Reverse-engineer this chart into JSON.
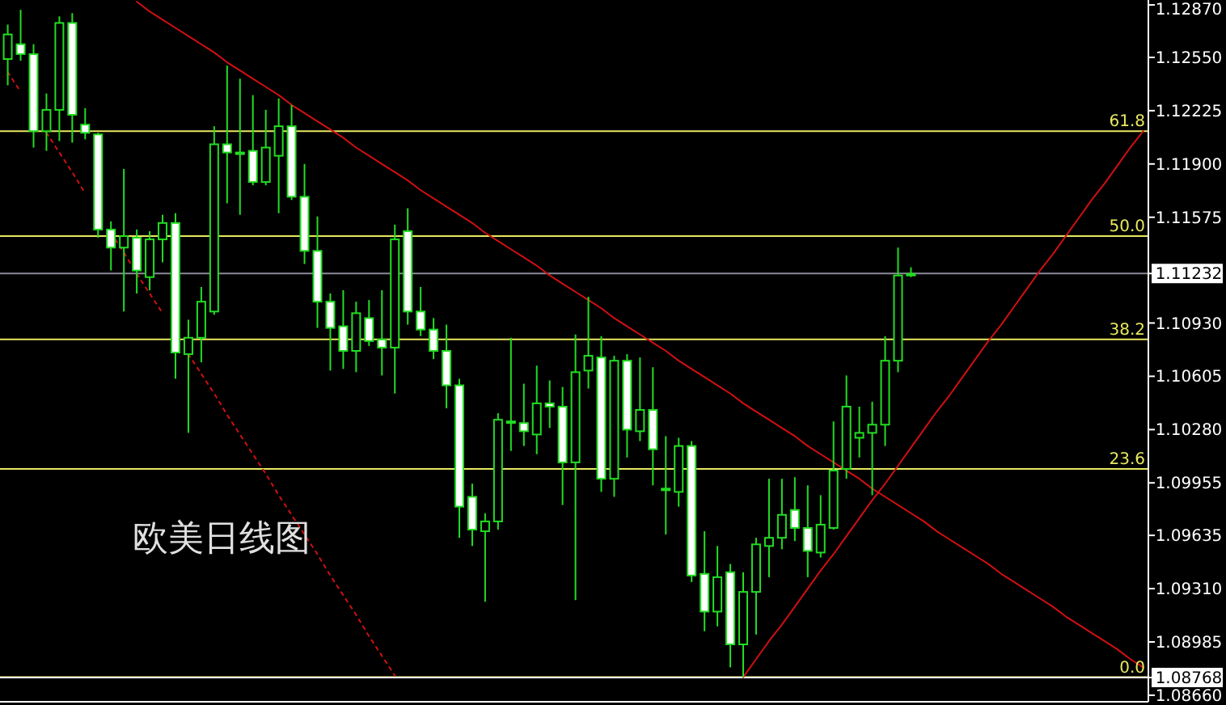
{
  "chart_data": {
    "type": "candlestick",
    "categories": [
      null,
      null,
      null,
      null,
      null,
      null,
      null,
      null,
      null,
      null,
      null,
      null,
      null,
      null,
      null,
      null,
      null,
      null,
      null,
      null,
      null,
      null,
      null,
      null,
      null,
      null,
      null,
      null,
      null,
      null,
      null,
      null,
      null,
      null,
      null,
      null,
      null,
      null,
      null,
      null,
      null,
      null,
      null,
      null,
      null,
      null,
      null,
      null,
      null,
      null,
      null,
      null,
      null,
      null,
      null,
      null,
      null,
      null,
      null,
      null,
      null,
      null,
      null,
      null,
      null,
      null,
      null,
      null,
      null,
      null,
      null,
      null,
      null,
      null,
      null,
      null,
      null,
      null,
      null,
      null,
      null,
      null,
      null,
      null,
      null,
      null,
      null,
      null,
      null
    ],
    "color": "#22dd22",
    "ohlc": [
      [
        1.1254,
        1.1275,
        1.1238,
        1.1269
      ],
      [
        1.1263,
        1.1284,
        1.1253,
        1.1257
      ],
      [
        1.1257,
        1.1263,
        1.12,
        1.121
      ],
      [
        1.121,
        1.1233,
        1.1198,
        1.1223
      ],
      [
        1.1223,
        1.128,
        1.1204,
        1.1276
      ],
      [
        1.1276,
        1.1282,
        1.1203,
        1.122
      ],
      [
        1.1214,
        1.1224,
        1.1205,
        1.1209
      ],
      [
        1.1208,
        1.1209,
        1.1145,
        1.115
      ],
      [
        1.115,
        1.1155,
        1.1125,
        1.1139
      ],
      [
        1.1139,
        1.1187,
        1.11,
        1.1146
      ],
      [
        1.1145,
        1.115,
        1.1111,
        1.1125
      ],
      [
        1.1121,
        1.1149,
        1.1113,
        1.1144
      ],
      [
        1.1144,
        1.1159,
        1.113,
        1.1154
      ],
      [
        1.1154,
        1.116,
        1.1059,
        1.1075
      ],
      [
        1.1074,
        1.1095,
        1.1026,
        1.1084
      ],
      [
        1.1084,
        1.1115,
        1.1069,
        1.1106
      ],
      [
        1.11,
        1.1213,
        1.1098,
        1.1202
      ],
      [
        1.1202,
        1.125,
        1.1166,
        1.1197
      ],
      [
        1.1197,
        1.1242,
        1.1159,
        1.1197
      ],
      [
        1.1198,
        1.1232,
        1.1177,
        1.1179
      ],
      [
        1.1179,
        1.1223,
        1.1177,
        1.12
      ],
      [
        1.1195,
        1.123,
        1.116,
        1.1213
      ],
      [
        1.1213,
        1.1226,
        1.1168,
        1.117
      ],
      [
        1.117,
        1.119,
        1.1129,
        1.1137
      ],
      [
        1.1137,
        1.1158,
        1.109,
        1.1106
      ],
      [
        1.1106,
        1.1111,
        1.1064,
        1.109
      ],
      [
        1.1091,
        1.1113,
        1.1065,
        1.1076
      ],
      [
        1.1076,
        1.1106,
        1.1063,
        1.1099
      ],
      [
        1.1096,
        1.1107,
        1.1079,
        1.1082
      ],
      [
        1.1083,
        1.1113,
        1.1061,
        1.1078
      ],
      [
        1.1078,
        1.1153,
        1.105,
        1.1144
      ],
      [
        1.1149,
        1.1163,
        1.1092,
        1.11
      ],
      [
        1.11,
        1.1115,
        1.1085,
        1.1089
      ],
      [
        1.1089,
        1.1096,
        1.1071,
        1.1076
      ],
      [
        1.1076,
        1.1092,
        1.1041,
        1.1055
      ],
      [
        1.1055,
        1.1059,
        1.0962,
        1.0981
      ],
      [
        1.0987,
        1.0995,
        1.0957,
        1.0967
      ],
      [
        1.0966,
        1.0977,
        1.0923,
        1.0972
      ],
      [
        1.0972,
        1.1038,
        1.0967,
        1.1034
      ],
      [
        1.1033,
        1.1084,
        1.1015,
        1.1033
      ],
      [
        1.1032,
        1.1056,
        1.1018,
        1.1027
      ],
      [
        1.1025,
        1.1067,
        1.1013,
        1.1044
      ],
      [
        1.1044,
        1.1058,
        1.1029,
        1.1042
      ],
      [
        1.1042,
        1.1054,
        1.0982,
        1.1008
      ],
      [
        1.1008,
        1.1086,
        1.0924,
        1.1063
      ],
      [
        1.1064,
        1.1109,
        1.1053,
        1.1073
      ],
      [
        1.1072,
        1.1085,
        1.099,
        1.0998
      ],
      [
        1.0998,
        1.1073,
        1.0987,
        1.107
      ],
      [
        1.107,
        1.1074,
        1.1011,
        1.1028
      ],
      [
        1.1027,
        1.1072,
        1.1021,
        1.104
      ],
      [
        1.104,
        1.1066,
        1.0994,
        1.1016
      ],
      [
        1.0992,
        1.1024,
        1.0964,
        1.0992
      ],
      [
        1.099,
        1.1023,
        1.0981,
        1.1018
      ],
      [
        1.1018,
        1.1021,
        1.0935,
        1.0939
      ],
      [
        1.094,
        1.0966,
        1.0905,
        1.0917
      ],
      [
        1.0917,
        1.0957,
        1.0908,
        1.0938
      ],
      [
        1.0941,
        1.0946,
        1.0883,
        1.0897
      ],
      [
        1.0897,
        1.0941,
        1.0877,
        1.0929
      ],
      [
        1.0929,
        1.0962,
        1.0903,
        1.0958
      ],
      [
        1.0957,
        1.0998,
        1.0938,
        1.0962
      ],
      [
        1.0962,
        1.0998,
        1.0955,
        1.0976
      ],
      [
        1.0979,
        1.0999,
        1.096,
        1.0968
      ],
      [
        1.0968,
        1.0994,
        1.0938,
        1.0954
      ],
      [
        1.0953,
        1.0988,
        1.095,
        1.097
      ],
      [
        1.0968,
        1.1033,
        1.0967,
        1.1003
      ],
      [
        1.1004,
        1.1061,
        1.0998,
        1.1042
      ],
      [
        1.1023,
        1.1042,
        1.1011,
        1.1026
      ],
      [
        1.1026,
        1.1045,
        1.0988,
        1.1031
      ],
      [
        1.1031,
        1.1085,
        1.1018,
        1.107
      ],
      [
        1.107,
        1.1139,
        1.1063,
        1.1122
      ],
      [
        1.1122,
        1.1127,
        1.1121,
        1.1123
      ],
      null,
      null,
      null,
      null,
      null,
      null,
      null,
      null,
      null,
      null,
      null,
      null,
      null,
      null,
      null,
      null,
      null,
      null
    ],
    "series": [
      {
        "type": "line",
        "color": "#d01010",
        "line_style": "solid",
        "values": [
          null,
          null,
          null,
          null,
          null,
          null,
          null,
          null,
          null,
          null,
          1.1289,
          1.1283,
          1.1278,
          1.1273,
          1.1268,
          1.1263,
          1.1258,
          1.1252,
          1.1247,
          1.1242,
          1.1237,
          1.1232,
          1.1226,
          1.1221,
          1.1216,
          1.1211,
          1.1206,
          1.12,
          1.1195,
          1.119,
          1.1185,
          1.118,
          1.1174,
          1.1169,
          1.1164,
          1.1159,
          1.1154,
          1.1148,
          1.1143,
          1.1138,
          1.1133,
          1.1128,
          1.1122,
          1.1117,
          1.1112,
          1.1107,
          1.1102,
          1.1096,
          1.1091,
          1.1086,
          1.1081,
          1.1076,
          1.107,
          1.1065,
          1.106,
          1.1055,
          1.105,
          1.1044,
          1.1039,
          1.1034,
          1.1029,
          1.1024,
          1.1018,
          1.1013,
          1.1008,
          1.1003,
          1.0998,
          1.0992,
          1.0987,
          1.0982,
          1.0977,
          1.0972,
          1.0966,
          1.0961,
          1.0956,
          1.0951,
          1.0946,
          1.094,
          1.0935,
          1.093,
          1.0925,
          1.092,
          1.0914,
          1.0909,
          1.0904,
          1.0899,
          1.0894,
          1.0888,
          1.0883
        ]
      },
      {
        "type": "line",
        "color": "#d01010",
        "line_style": "solid",
        "values": [
          null,
          null,
          null,
          null,
          null,
          null,
          null,
          null,
          null,
          null,
          null,
          null,
          null,
          null,
          null,
          null,
          null,
          null,
          null,
          null,
          null,
          null,
          null,
          null,
          null,
          null,
          null,
          null,
          null,
          null,
          null,
          null,
          null,
          null,
          null,
          null,
          null,
          null,
          null,
          null,
          null,
          null,
          null,
          null,
          null,
          null,
          null,
          null,
          null,
          null,
          null,
          null,
          null,
          null,
          null,
          null,
          null,
          1.0877,
          1.0888,
          1.0899,
          1.0909,
          1.092,
          1.0931,
          1.0942,
          1.0952,
          1.0963,
          1.0974,
          1.0985,
          1.0995,
          1.1006,
          1.1017,
          1.1028,
          1.1039,
          1.1049,
          1.106,
          1.1071,
          1.1082,
          1.1092,
          1.1103,
          1.1114,
          1.1125,
          1.1135,
          1.1146,
          1.1157,
          1.1168,
          1.1178,
          1.1189,
          1.12,
          1.121
        ]
      },
      {
        "type": "line",
        "color": "#d01010",
        "line_style": "dotted",
        "values": [
          1.1246,
          1.1234,
          null,
          1.1209,
          1.1197,
          1.1185,
          1.1172,
          null,
          1.1148,
          1.1136,
          1.1123,
          1.1111,
          1.1099,
          null,
          1.1074,
          1.1062,
          1.105,
          1.1037,
          1.1025,
          1.1013,
          1.1001,
          1.0988,
          1.0976,
          1.0964,
          1.0952,
          1.0939,
          1.0927,
          1.0915,
          1.0902,
          1.089,
          1.0878,
          null,
          null,
          null,
          null,
          null,
          null,
          null,
          null,
          null,
          null,
          null,
          null,
          null,
          null,
          null,
          null,
          null,
          null,
          null,
          null,
          null,
          null,
          null,
          null,
          null,
          null,
          null,
          null,
          null,
          null,
          null,
          null,
          null,
          null,
          null,
          null,
          null,
          null,
          null,
          null,
          null,
          null,
          null,
          null,
          null,
          null,
          null,
          null,
          null,
          null,
          null,
          null,
          null,
          null,
          null,
          null,
          null,
          null
        ]
      }
    ],
    "ylim": [
      1.0862,
      1.129
    ],
    "yticks": [
      {
        "value": 1.1287,
        "label": "1.12870"
      },
      {
        "value": 1.1255,
        "label": "1.12550"
      },
      1.12225,
      {
        "value": 1.119,
        "label": "1.11900"
      },
      1.11575,
      1.11232,
      {
        "value": 1.1093,
        "label": "1.10930"
      },
      1.10605,
      {
        "value": 1.1028,
        "label": "1.10280"
      },
      1.09955,
      1.09635,
      {
        "value": 1.0931,
        "label": "1.09310"
      },
      1.08985,
      1.08768,
      {
        "value": 1.0866,
        "label": "1.08660"
      }
    ],
    "tick_labels": "y",
    "ref_lines": [
      {
        "axis": "y",
        "value": 1.121,
        "color": "#e8e860"
      },
      {
        "axis": "y",
        "value": 1.1146,
        "color": "#e8e860"
      },
      {
        "axis": "y",
        "value": 1.1083,
        "color": "#e8e860"
      },
      {
        "axis": "y",
        "value": 1.1004,
        "color": "#e8e860"
      },
      {
        "axis": "y",
        "value": 1.0877,
        "color": "#e8e860"
      },
      {
        "axis": "y",
        "value": 1.11232,
        "color": "#8a8a9a"
      },
      {
        "axis": "y",
        "value": 1.08768,
        "color": "#ffffff"
      }
    ],
    "annotations": [
      "欧美日线图",
      {
        "text": "61.8",
        "y": 1.121
      },
      {
        "text": "50.0",
        "y": 1.1146
      },
      {
        "text": "38.2",
        "y": 1.1083
      },
      {
        "text": "23.6",
        "y": 1.1004
      },
      {
        "text": "0.0",
        "y": 1.0877
      }
    ]
  }
}
